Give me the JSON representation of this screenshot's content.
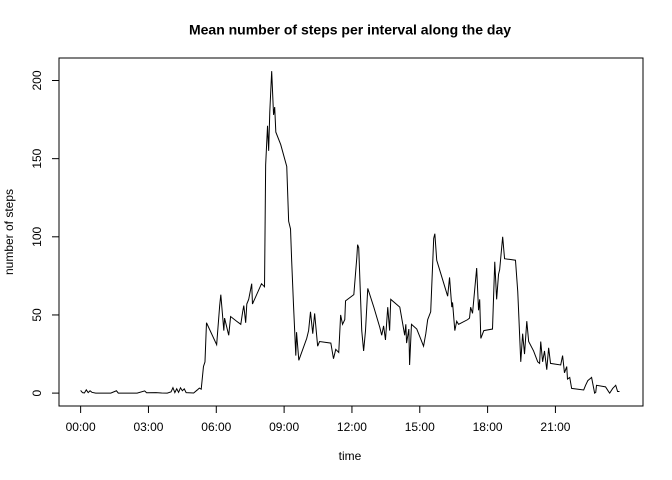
{
  "chart_data": {
    "type": "line",
    "title": "Mean number of steps per interval along the day",
    "x_label": "time",
    "y_label": "number of steps",
    "color": "#000000",
    "x": [
      0,
      5,
      10,
      15,
      20,
      25,
      30,
      40,
      60,
      80,
      95,
      100,
      120,
      150,
      170,
      175,
      200,
      215,
      230,
      240,
      245,
      250,
      255,
      260,
      265,
      270,
      275,
      280,
      300,
      310,
      315,
      320,
      326,
      330,
      334,
      361,
      369,
      372,
      380,
      382,
      393,
      398,
      414,
      425,
      430,
      433,
      438,
      441,
      446,
      454,
      456,
      480,
      488,
      491,
      496,
      499,
      502,
      507,
      512,
      515,
      518,
      531,
      547,
      552,
      557,
      560,
      565,
      571,
      573,
      579,
      600,
      605,
      610,
      616,
      621,
      629,
      634,
      664,
      671,
      677,
      685,
      690,
      695,
      701,
      703,
      725,
      733,
      735,
      738,
      746,
      751,
      756,
      762,
      778,
      794,
      799,
      804,
      809,
      815,
      820,
      823,
      847,
      860,
      863,
      865,
      871,
      873,
      878,
      892,
      902,
      910,
      916,
      921,
      929,
      937,
      940,
      945,
      974,
      979,
      985,
      987,
      993,
      998,
      1003,
      1027,
      1032,
      1035,
      1040,
      1051,
      1056,
      1059,
      1062,
      1070,
      1093,
      1099,
      1104,
      1109,
      1112,
      1120,
      1125,
      1154,
      1160,
      1162,
      1168,
      1173,
      1178,
      1184,
      1189,
      1202,
      1213,
      1218,
      1221,
      1226,
      1231,
      1237,
      1242,
      1247,
      1274,
      1279,
      1284,
      1290,
      1292,
      1298,
      1303,
      1335,
      1340,
      1346,
      1351,
      1356,
      1364,
      1367,
      1369,
      1393,
      1401,
      1404,
      1412,
      1420,
      1425,
      1430
    ],
    "values": [
      1.7,
      0.3,
      0.1,
      2.1,
      0.3,
      1.5,
      0.5,
      0,
      0,
      0,
      1.5,
      0,
      0,
      0,
      1.4,
      0.2,
      0.3,
      0.1,
      0,
      0.8,
      3.5,
      0.3,
      2.8,
      0.5,
      3.4,
      1.5,
      2.7,
      0.3,
      0.1,
      2.1,
      3.2,
      2.5,
      17,
      20,
      45,
      31,
      56,
      63,
      40,
      48,
      37,
      49,
      46,
      44,
      52,
      56,
      45,
      57,
      60,
      70,
      57,
      70,
      68,
      146,
      171,
      155,
      180,
      206,
      178,
      183,
      167,
      159,
      145,
      110,
      105,
      85,
      56,
      24,
      39,
      21,
      35,
      40,
      52,
      38,
      51,
      30,
      33,
      32,
      22,
      28,
      26,
      50,
      44,
      47,
      59,
      63,
      87,
      95,
      93,
      40,
      27,
      40,
      67,
      55,
      42,
      37,
      43,
      34,
      55,
      40,
      60,
      55,
      37,
      44,
      32,
      41,
      18,
      44,
      41,
      35,
      30,
      38,
      47,
      52,
      99,
      102,
      85,
      62,
      74,
      55,
      58,
      40,
      46,
      44,
      47,
      48,
      55,
      51,
      80,
      53,
      60,
      35,
      40,
      41,
      84,
      60,
      76,
      79,
      100,
      86,
      85,
      65,
      54,
      20,
      38,
      25,
      46,
      33,
      27,
      20,
      19,
      33,
      20,
      27,
      15,
      29,
      19,
      18,
      24,
      13,
      17,
      9,
      10,
      3,
      2,
      5,
      8,
      9,
      10,
      0,
      0.5,
      5,
      4,
      1,
      0,
      3,
      5,
      1,
      1
    ],
    "xlim": [
      -57.4,
      1492.4
    ],
    "ylim": [
      -8.25,
      214.4
    ],
    "xticks": [
      {
        "value": 0,
        "label": "00:00"
      },
      {
        "value": 180,
        "label": "03:00"
      },
      {
        "value": 360,
        "label": "06:00"
      },
      {
        "value": 540,
        "label": "09:00"
      },
      {
        "value": 720,
        "label": "12:00"
      },
      {
        "value": 900,
        "label": "15:00"
      },
      {
        "value": 1080,
        "label": "18:00"
      },
      {
        "value": 1260,
        "label": "21:00"
      }
    ],
    "yticks": [
      0,
      50,
      100,
      150,
      200
    ]
  }
}
